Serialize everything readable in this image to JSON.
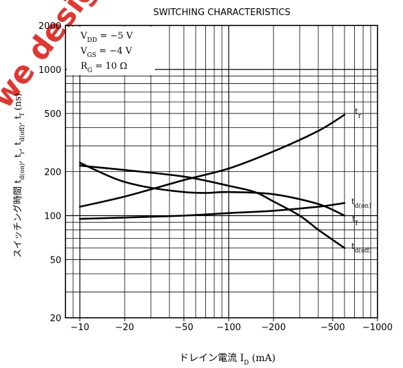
{
  "chart_data": {
    "type": "line",
    "title": "SWITCHING CHARACTERISTICS",
    "xlabel": "ドレイン電流 I_D (mA)",
    "ylabel": "スイッチング時間 t_d(on), t_r, t_d(off), t_f (ns)",
    "x_scale": "log",
    "y_scale": "log",
    "xlim": [
      8,
      1000
    ],
    "ylim": [
      20,
      2000
    ],
    "x_ticks": [
      {
        "value": 10,
        "label": "−10"
      },
      {
        "value": 20,
        "label": "−20"
      },
      {
        "value": 50,
        "label": "−50"
      },
      {
        "value": 100,
        "label": "−100"
      },
      {
        "value": 200,
        "label": "−200"
      },
      {
        "value": 500,
        "label": "−500"
      },
      {
        "value": 1000,
        "label": "−1000"
      }
    ],
    "y_ticks": [
      {
        "value": 20,
        "label": "20"
      },
      {
        "value": 50,
        "label": "50"
      },
      {
        "value": 100,
        "label": "100"
      },
      {
        "value": 200,
        "label": "200"
      },
      {
        "value": 500,
        "label": "500"
      },
      {
        "value": 1000,
        "label": "1000"
      },
      {
        "value": 2000,
        "label": "2000"
      }
    ],
    "conditions": [
      "V_DD = −5 V",
      "V_GS = −4 V",
      "R_G = 10 Ω"
    ],
    "grid": true,
    "series": [
      {
        "name": "t_r",
        "x": [
          10,
          20,
          50,
          100,
          200,
          400,
          600
        ],
        "y": [
          115,
          135,
          175,
          210,
          275,
          380,
          490
        ]
      },
      {
        "name": "t_d(on)",
        "x": [
          10,
          20,
          50,
          100,
          200,
          400,
          600
        ],
        "y": [
          95,
          97,
          100,
          104,
          108,
          115,
          122
        ]
      },
      {
        "name": "t_f",
        "x": [
          10,
          15,
          20,
          30,
          50,
          70,
          100,
          200,
          400,
          600
        ],
        "y": [
          230,
          190,
          170,
          155,
          145,
          143,
          145,
          140,
          120,
          100
        ]
      },
      {
        "name": "t_d(off)",
        "x": [
          10,
          20,
          50,
          100,
          150,
          200,
          300,
          400,
          600
        ],
        "y": [
          220,
          205,
          185,
          160,
          145,
          125,
          100,
          80,
          60
        ]
      }
    ]
  },
  "watermark": "we design"
}
